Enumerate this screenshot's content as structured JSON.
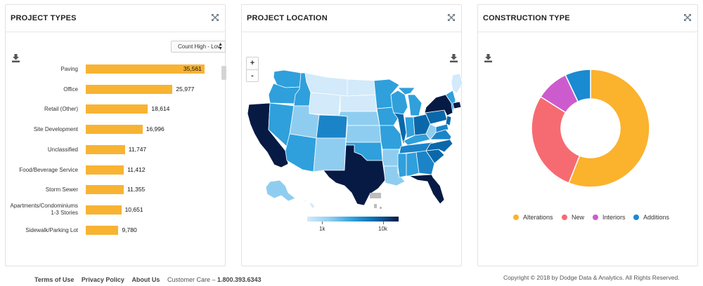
{
  "panels": {
    "project_types": {
      "title": "PROJECT TYPES",
      "sort_label": "Count High - Lov",
      "sort_arrows": "▲▼"
    },
    "project_location": {
      "title": "PROJECT LOCATION",
      "zoom_in": "+",
      "zoom_out": "-",
      "legend_labels": [
        "1k",
        "10k"
      ]
    },
    "construction_type": {
      "title": "CONSTRUCTION TYPE"
    }
  },
  "chart_data": [
    {
      "type": "bar",
      "orientation": "horizontal",
      "categories": [
        "Paving",
        "Office",
        "Retail (Other)",
        "Site Development",
        "Unclassified",
        "Food/Beverage Service",
        "Storm Sewer",
        "Apartments/Condominiums 1-3 Stories",
        "Sidewalk/Parking Lot"
      ],
      "category_lines": [
        [
          "Paving"
        ],
        [
          "Office"
        ],
        [
          "Retail (Other)"
        ],
        [
          "Site Development"
        ],
        [
          "Unclassified"
        ],
        [
          "Food/Beverage Service"
        ],
        [
          "Storm Sewer"
        ],
        [
          "Apartments/Condominiums",
          "1-3 Stories"
        ],
        [
          "Sidewalk/Parking Lot"
        ]
      ],
      "values": [
        35561,
        25977,
        18614,
        16996,
        11747,
        11412,
        11355,
        10651,
        9780
      ],
      "value_labels": [
        "35,561",
        "25,977",
        "18,614",
        "16,996",
        "11,747",
        "11,412",
        "11,355",
        "10,651",
        "9,780"
      ],
      "color": "#f8b333",
      "xlim": [
        0,
        36000
      ]
    },
    {
      "type": "pie",
      "donut": true,
      "labels": [
        "Alterations",
        "New",
        "Interiors",
        "Additions"
      ],
      "values": [
        56,
        28,
        9,
        7
      ],
      "colors": [
        "#fbb22d",
        "#f66b71",
        "#cc5ccd",
        "#1a8ad1"
      ]
    }
  ],
  "map": {
    "color_scale": [
      "#d2eafa",
      "#8fcdf0",
      "#2fa0dc",
      "#0a68aa",
      "#061a44"
    ],
    "dark_color": "#061a44",
    "territory_color": "#bdbdbd"
  },
  "footer": {
    "links": [
      "Terms of Use",
      "Privacy Policy",
      "About Us"
    ],
    "customer_care_label": "Customer Care –",
    "phone": "1.800.393.6343",
    "copyright": "Copyright © 2018 by Dodge Data & Analytics. All Rights Reserved."
  }
}
